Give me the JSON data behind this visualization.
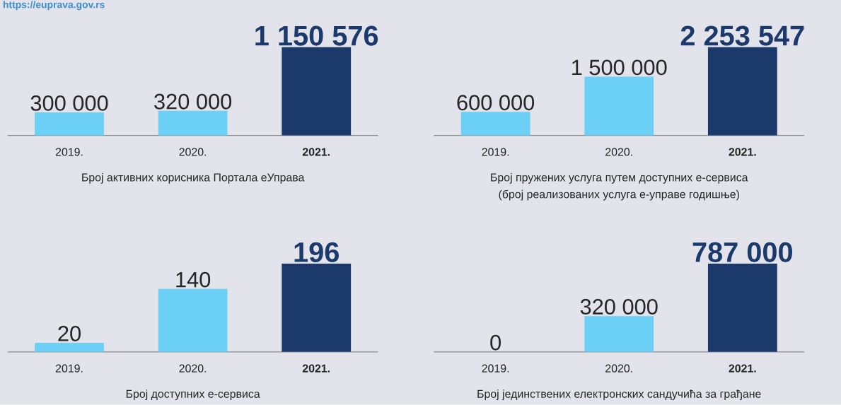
{
  "chart_data": [
    {
      "type": "bar",
      "title": "Број активних корисника Портала еУправа",
      "annotations": [
        "https://euprava.gov.rs"
      ],
      "categories": [
        "2019.",
        "2020.",
        "2021."
      ],
      "values": [
        300000,
        320000,
        1150576
      ],
      "colors": [
        "#6ccff6",
        "#6ccff6",
        "#1b3a6b"
      ],
      "value_labels": [
        "300 000",
        "320 000",
        "1 150 576"
      ]
    },
    {
      "type": "bar",
      "title": "Број пружених услуга путем доступних е-сервиса",
      "subtitle": "(број реализованих услуга е-управе годишње)",
      "categories": [
        "2019.",
        "2020.",
        "2021."
      ],
      "values": [
        600000,
        1500000,
        2253547
      ],
      "colors": [
        "#6ccff6",
        "#6ccff6",
        "#1b3a6b"
      ],
      "value_labels": [
        "600 000",
        "1 500 000",
        "2 253 547"
      ]
    },
    {
      "type": "bar",
      "title": "Број доступних е-сервиса",
      "categories": [
        "2019.",
        "2020.",
        "2021."
      ],
      "values": [
        20,
        140,
        196
      ],
      "colors": [
        "#6ccff6",
        "#6ccff6",
        "#1b3a6b"
      ],
      "value_labels": [
        "20",
        "140",
        "196"
      ]
    },
    {
      "type": "bar",
      "title": "Број јединствених електронских сандучића за грађане",
      "categories": [
        "2019.",
        "2020.",
        "2021."
      ],
      "values": [
        0,
        320000,
        787000
      ],
      "colors": [
        "#6ccff6",
        "#6ccff6",
        "#1b3a6b"
      ],
      "value_labels": [
        "0",
        "320 000",
        "787 000"
      ]
    }
  ]
}
